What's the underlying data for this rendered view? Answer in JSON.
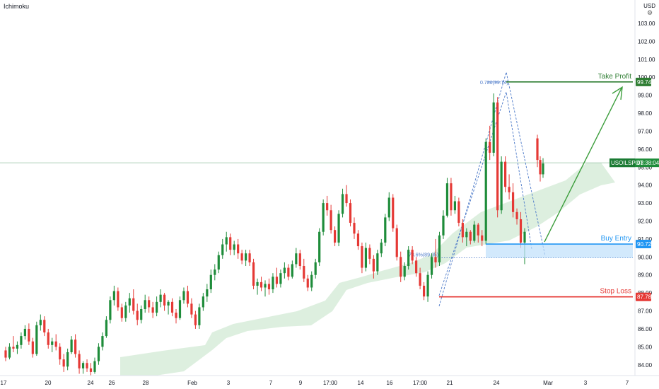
{
  "indicator_label": "Ichimoku",
  "currency": "USD",
  "icons": {
    "settings": "gear-icon"
  },
  "chart_data": {
    "type": "candlestick",
    "symbol": "USOILSPOT",
    "y_range": [
      83.4,
      104.3
    ],
    "y_ticks": [
      84,
      85,
      86,
      87,
      88,
      89,
      90,
      91,
      92,
      93,
      94,
      95,
      96,
      97,
      98,
      99,
      100,
      101,
      102,
      103
    ],
    "y_tick_labels": [
      "84.00",
      "85.00",
      "86.00",
      "87.00",
      "88.00",
      "89.00",
      "90.00",
      "91.00",
      "92.00",
      "93.00",
      "94.00",
      "95.00",
      "96.00",
      "97.00",
      "98.00",
      "99.00",
      "100.00",
      "101.00",
      "102.00",
      "103.00"
    ],
    "x_labels": [
      "17",
      "20",
      "24",
      "26",
      "28",
      "Feb",
      "3",
      "7",
      "9",
      "17:00",
      "14",
      "16",
      "17:00",
      "21",
      "24",
      "Mar",
      "3",
      "7"
    ],
    "current_price": {
      "symbol": "USOILSPOT",
      "countdown": "03:38:04",
      "value": 95.24
    },
    "levels": [
      {
        "name": "Take Profit",
        "value": 99.74,
        "label": "99.74",
        "color": "#2e7d32"
      },
      {
        "name": "Buy Entry",
        "value": 90.72,
        "label": "90.72",
        "color": "#2196f3"
      },
      {
        "name": "Stop Loss",
        "value": 87.78,
        "label": "87.78",
        "color": "#e53935"
      }
    ],
    "fib_labels": [
      {
        "text": "0.786(99.74)",
        "value": 99.74
      },
      {
        "text": "78.6%(89.95)",
        "value": 89.95
      }
    ],
    "colors": {
      "up": "#26a69a",
      "up_candle": "#1e8c3a",
      "down": "#e53935",
      "cloud": "#d7ecd9",
      "fib": "#4a78c8"
    },
    "candles": [
      [
        84.8,
        85.0,
        84.2,
        84.4
      ],
      [
        84.4,
        85.2,
        84.3,
        85.0
      ],
      [
        85.0,
        85.6,
        84.7,
        84.9
      ],
      [
        84.9,
        85.3,
        84.6,
        85.1
      ],
      [
        85.1,
        85.8,
        84.9,
        85.6
      ],
      [
        85.6,
        86.2,
        85.4,
        86.0
      ],
      [
        86.0,
        86.3,
        85.1,
        85.3
      ],
      [
        85.3,
        85.5,
        84.4,
        84.6
      ],
      [
        84.6,
        86.4,
        84.5,
        86.2
      ],
      [
        86.2,
        86.8,
        85.9,
        86.5
      ],
      [
        86.5,
        86.7,
        85.6,
        85.8
      ],
      [
        85.8,
        86.0,
        84.9,
        85.1
      ],
      [
        85.1,
        85.5,
        84.7,
        85.3
      ],
      [
        85.3,
        85.7,
        84.8,
        85.0
      ],
      [
        85.0,
        85.2,
        84.0,
        84.3
      ],
      [
        84.3,
        84.6,
        83.6,
        83.9
      ],
      [
        83.9,
        84.9,
        83.7,
        84.7
      ],
      [
        84.7,
        85.6,
        84.6,
        85.4
      ],
      [
        85.4,
        85.7,
        84.4,
        84.6
      ],
      [
        84.6,
        84.8,
        83.5,
        83.8
      ],
      [
        83.8,
        84.2,
        83.5,
        84.1
      ],
      [
        84.1,
        84.3,
        83.6,
        83.8
      ],
      [
        83.8,
        84.1,
        83.4,
        83.6
      ],
      [
        83.6,
        84.4,
        83.5,
        84.2
      ],
      [
        84.2,
        85.2,
        84.0,
        85.0
      ],
      [
        85.0,
        85.8,
        84.8,
        85.6
      ],
      [
        85.6,
        86.7,
        85.5,
        86.5
      ],
      [
        86.5,
        87.8,
        86.3,
        87.6
      ],
      [
        87.6,
        88.4,
        87.3,
        88.1
      ],
      [
        88.1,
        88.3,
        87.0,
        87.2
      ],
      [
        87.2,
        87.4,
        86.4,
        86.6
      ],
      [
        86.6,
        87.5,
        86.4,
        87.3
      ],
      [
        87.3,
        88.0,
        86.9,
        87.7
      ],
      [
        87.7,
        88.2,
        86.8,
        87.0
      ],
      [
        87.0,
        87.4,
        86.2,
        86.5
      ],
      [
        86.5,
        87.3,
        86.3,
        87.1
      ],
      [
        87.1,
        87.9,
        86.9,
        87.6
      ],
      [
        87.6,
        87.8,
        86.9,
        87.2
      ],
      [
        87.2,
        87.5,
        86.6,
        86.9
      ],
      [
        86.9,
        87.8,
        86.7,
        87.5
      ],
      [
        87.5,
        88.2,
        87.2,
        87.9
      ],
      [
        87.9,
        88.0,
        87.0,
        87.3
      ],
      [
        87.3,
        87.6,
        86.8,
        87.5
      ],
      [
        87.5,
        87.7,
        86.7,
        86.9
      ],
      [
        86.9,
        87.1,
        86.3,
        86.6
      ],
      [
        86.6,
        87.8,
        86.5,
        87.6
      ],
      [
        87.6,
        88.3,
        87.4,
        88.1
      ],
      [
        88.1,
        88.4,
        87.2,
        87.4
      ],
      [
        87.4,
        87.7,
        86.6,
        86.8
      ],
      [
        86.8,
        87.0,
        86.0,
        86.2
      ],
      [
        86.2,
        87.4,
        86.0,
        87.2
      ],
      [
        87.2,
        88.0,
        87.0,
        87.8
      ],
      [
        87.8,
        88.5,
        87.5,
        88.2
      ],
      [
        88.2,
        89.3,
        88.0,
        89.0
      ],
      [
        89.0,
        89.6,
        88.7,
        89.3
      ],
      [
        89.3,
        90.3,
        89.1,
        90.1
      ],
      [
        90.1,
        91.0,
        89.9,
        90.7
      ],
      [
        90.7,
        91.4,
        90.3,
        91.1
      ],
      [
        91.1,
        91.3,
        90.1,
        90.4
      ],
      [
        90.4,
        90.9,
        90.1,
        90.7
      ],
      [
        90.7,
        91.0,
        89.9,
        90.2
      ],
      [
        90.2,
        90.4,
        89.6,
        89.8
      ],
      [
        89.8,
        90.4,
        89.5,
        90.2
      ],
      [
        90.2,
        90.4,
        89.5,
        89.7
      ],
      [
        89.7,
        89.9,
        88.2,
        88.4
      ],
      [
        88.4,
        88.8,
        87.9,
        88.6
      ],
      [
        88.6,
        88.9,
        88.1,
        88.3
      ],
      [
        88.3,
        88.7,
        87.8,
        88.5
      ],
      [
        88.5,
        88.8,
        87.9,
        88.2
      ],
      [
        88.2,
        89.1,
        88.0,
        88.9
      ],
      [
        88.9,
        89.4,
        88.3,
        88.5
      ],
      [
        88.5,
        89.3,
        88.3,
        89.1
      ],
      [
        89.1,
        89.7,
        88.8,
        89.4
      ],
      [
        89.4,
        89.6,
        88.7,
        88.9
      ],
      [
        88.9,
        89.8,
        88.8,
        89.6
      ],
      [
        89.6,
        90.5,
        89.4,
        90.2
      ],
      [
        90.2,
        90.4,
        89.3,
        89.5
      ],
      [
        89.5,
        89.9,
        88.6,
        88.8
      ],
      [
        88.8,
        89.0,
        88.1,
        88.3
      ],
      [
        88.3,
        89.2,
        88.1,
        89.0
      ],
      [
        89.0,
        89.9,
        88.8,
        89.7
      ],
      [
        89.7,
        91.6,
        89.5,
        91.4
      ],
      [
        91.4,
        93.2,
        91.2,
        93.0
      ],
      [
        93.0,
        93.4,
        92.3,
        92.6
      ],
      [
        92.6,
        92.9,
        91.3,
        91.5
      ],
      [
        91.5,
        91.7,
        90.6,
        90.8
      ],
      [
        90.8,
        92.6,
        90.6,
        92.4
      ],
      [
        92.4,
        93.8,
        92.2,
        93.5
      ],
      [
        93.5,
        94.0,
        92.8,
        93.0
      ],
      [
        93.0,
        93.2,
        91.7,
        91.9
      ],
      [
        91.9,
        92.2,
        91.0,
        91.3
      ],
      [
        91.3,
        91.5,
        90.4,
        90.6
      ],
      [
        90.6,
        90.8,
        89.1,
        89.4
      ],
      [
        89.4,
        90.8,
        89.2,
        90.5
      ],
      [
        90.5,
        90.7,
        89.6,
        89.9
      ],
      [
        89.9,
        90.1,
        88.8,
        89.2
      ],
      [
        89.2,
        90.4,
        89.0,
        90.2
      ],
      [
        90.2,
        91.0,
        90.0,
        90.8
      ],
      [
        90.8,
        92.4,
        90.6,
        92.2
      ],
      [
        92.2,
        93.6,
        92.0,
        93.3
      ],
      [
        93.3,
        93.5,
        91.4,
        91.6
      ],
      [
        91.6,
        91.8,
        89.8,
        90.0
      ],
      [
        90.0,
        90.3,
        88.6,
        88.9
      ],
      [
        88.9,
        89.7,
        88.7,
        89.5
      ],
      [
        89.5,
        90.6,
        89.3,
        90.4
      ],
      [
        90.4,
        90.6,
        89.6,
        89.8
      ],
      [
        89.8,
        90.0,
        88.9,
        89.1
      ],
      [
        89.1,
        89.4,
        88.2,
        88.4
      ],
      [
        88.4,
        88.6,
        87.6,
        87.8
      ],
      [
        87.8,
        89.2,
        87.5,
        89.0
      ],
      [
        89.0,
        90.2,
        88.8,
        90.0
      ],
      [
        90.0,
        91.0,
        89.4,
        89.7
      ],
      [
        89.7,
        91.4,
        89.5,
        91.2
      ],
      [
        91.2,
        92.6,
        91.0,
        92.3
      ],
      [
        92.3,
        94.4,
        92.2,
        94.1
      ],
      [
        94.1,
        94.4,
        92.3,
        92.6
      ],
      [
        92.6,
        93.4,
        92.4,
        93.1
      ],
      [
        93.1,
        93.3,
        91.7,
        91.9
      ],
      [
        91.9,
        92.1,
        90.8,
        91.1
      ],
      [
        91.1,
        91.6,
        90.6,
        91.4
      ],
      [
        91.4,
        91.5,
        90.7,
        90.9
      ],
      [
        90.9,
        92.0,
        90.8,
        91.8
      ],
      [
        91.8,
        91.9,
        90.8,
        91.2
      ],
      [
        91.2,
        91.5,
        90.6,
        90.9
      ],
      [
        90.9,
        96.6,
        90.7,
        96.4
      ],
      [
        96.4,
        97.3,
        95.4,
        95.8
      ],
      [
        95.8,
        99.1,
        95.6,
        98.6
      ],
      [
        98.6,
        98.9,
        92.2,
        92.6
      ],
      [
        92.6,
        95.6,
        92.4,
        95.3
      ],
      [
        95.3,
        95.6,
        93.6,
        93.9
      ],
      [
        93.9,
        94.6,
        93.2,
        93.6
      ],
      [
        93.6,
        94.1,
        92.2,
        92.5
      ],
      [
        92.5,
        92.7,
        91.8,
        92.1
      ],
      [
        92.1,
        92.5,
        90.5,
        90.8
      ],
      [
        90.8,
        91.6,
        89.6,
        91.4
      ]
    ],
    "late_candles": [
      [
        96.6,
        96.8,
        95.0,
        95.4
      ],
      [
        95.4,
        95.6,
        94.2,
        94.6
      ],
      [
        94.6,
        95.5,
        94.4,
        95.2
      ]
    ]
  }
}
